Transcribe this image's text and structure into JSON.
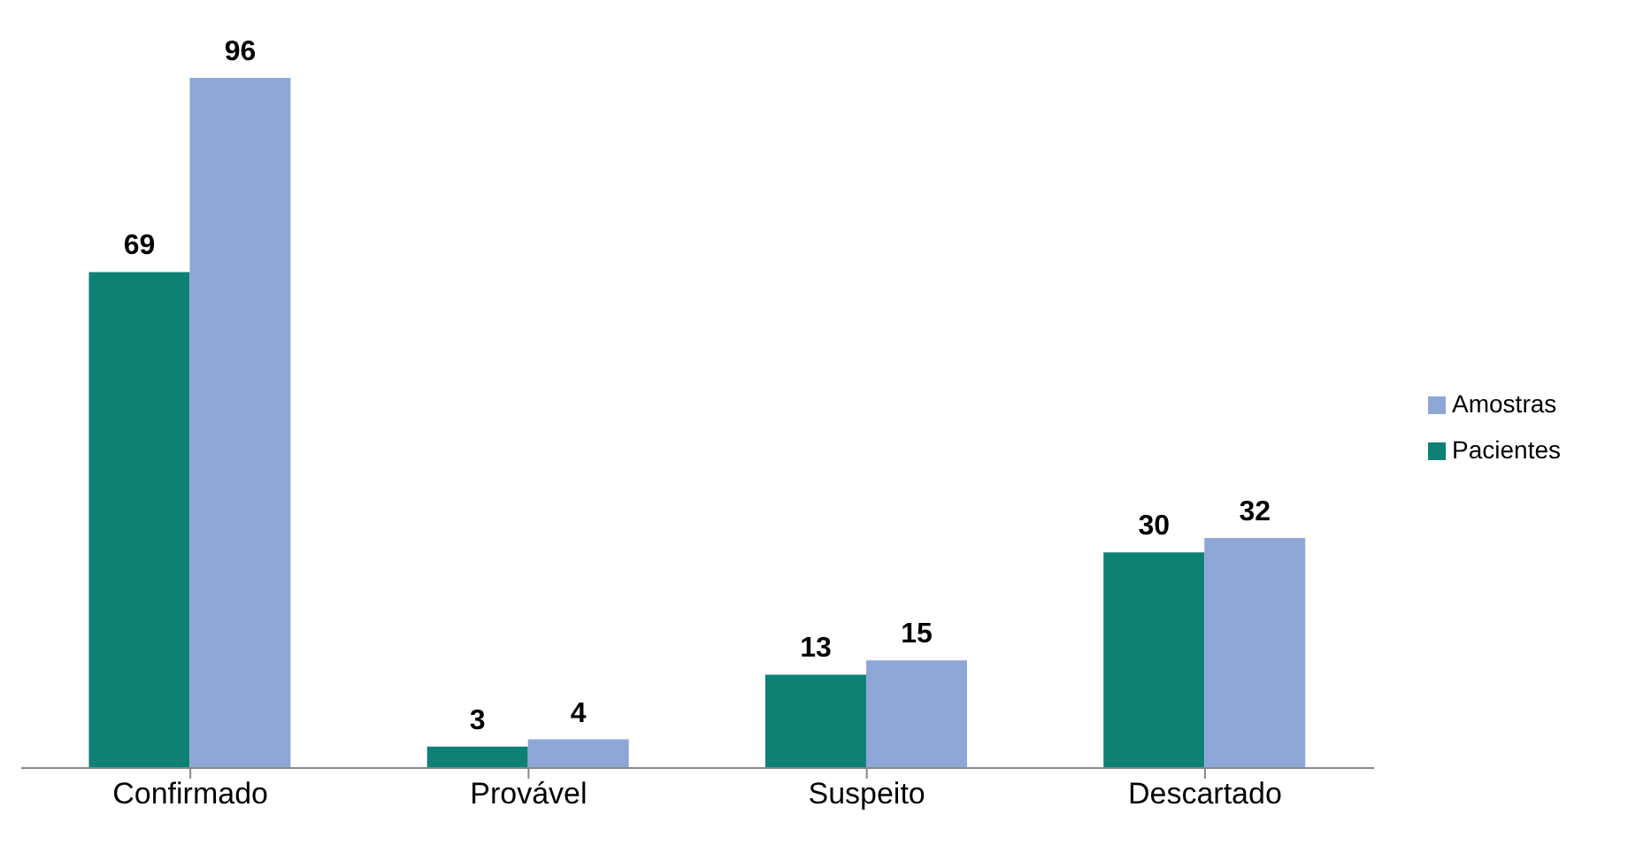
{
  "chart_data": {
    "type": "bar",
    "categories": [
      "Confirmado",
      "Provável",
      "Suspeito",
      "Descartado"
    ],
    "series": [
      {
        "name": "Pacientes",
        "color": "#0e8075",
        "values": [
          69,
          3,
          13,
          30
        ]
      },
      {
        "name": "Amostras",
        "color": "#8ea6d6",
        "values": [
          96,
          4,
          15,
          32
        ]
      }
    ],
    "data_labels": true,
    "grid": false,
    "legend": "right"
  }
}
